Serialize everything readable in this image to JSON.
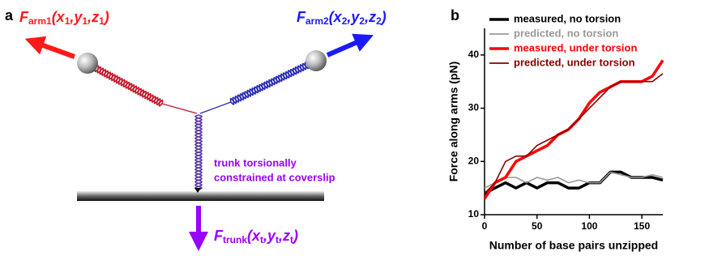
{
  "panel_a": {
    "letter": "a",
    "arm1_label": [
      "F",
      "arm1",
      "(x",
      "1",
      ",y",
      "1",
      ",z",
      "1",
      ")"
    ],
    "arm2_label": [
      "F",
      "arm2",
      "(x",
      "2",
      ",y",
      "2",
      ",z",
      "2",
      ")"
    ],
    "trunk_label": [
      "F",
      "trunk",
      "(x",
      "t",
      ",y",
      "t",
      ",z",
      "t",
      ")"
    ],
    "trunk_note": [
      "trunk torsionally",
      "constrained at coverslip"
    ]
  },
  "chart_data": {
    "type": "line",
    "panel_letter": "b",
    "x_label": "Number of base pairs unzipped",
    "y_label": "Force along arms (pN)",
    "x": [
      0,
      10,
      20,
      30,
      40,
      50,
      60,
      70,
      80,
      90,
      100,
      110,
      120,
      130,
      140,
      150,
      160,
      170
    ],
    "series": [
      {
        "name": "measured, no torsion",
        "color": "#000000",
        "values": [
          14,
          15,
          16,
          15,
          16,
          15,
          16,
          16,
          15,
          15,
          16,
          16,
          18,
          18,
          17,
          17,
          17,
          16.5
        ]
      },
      {
        "name": "predicted,  no torsion",
        "color": "#999999",
        "values": [
          15,
          16,
          17,
          17,
          16,
          17,
          16.5,
          17,
          16,
          16.5,
          16,
          16,
          18,
          17.5,
          17,
          17,
          17.5,
          17
        ]
      },
      {
        "name": "measured, under torsion",
        "color": "#ff0000",
        "values": [
          13,
          16,
          17,
          20,
          21,
          22,
          23,
          25,
          26,
          28,
          31,
          33,
          34,
          35,
          35,
          35,
          36,
          39
        ]
      },
      {
        "name": "predicted,  under torsion",
        "color": "#8b0000",
        "values": [
          14,
          16,
          20,
          21,
          21,
          23,
          24,
          25,
          26,
          28,
          30,
          32,
          34,
          35,
          35,
          35,
          35,
          36.5
        ]
      }
    ],
    "xlim": [
      0,
      170
    ],
    "ylim": [
      10,
      45
    ],
    "xticks": [
      0,
      50,
      100,
      150
    ],
    "yticks": [
      10,
      20,
      30,
      40
    ],
    "legend": "upper left"
  }
}
